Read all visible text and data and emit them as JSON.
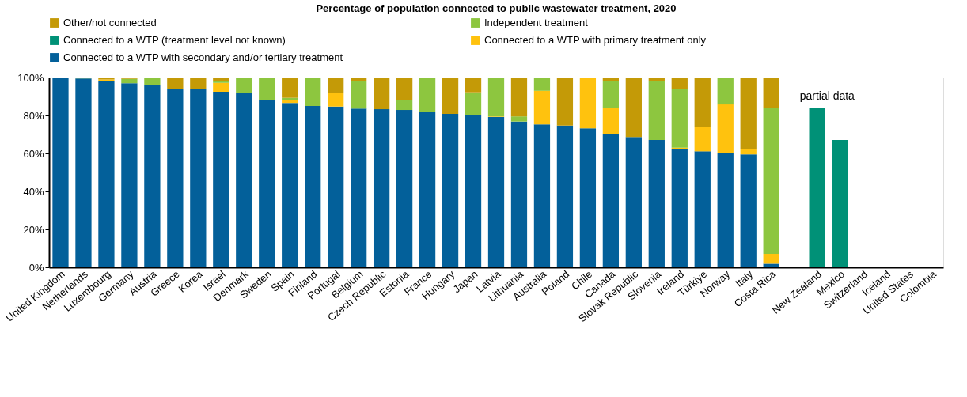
{
  "chart_data": {
    "type": "bar",
    "title": "Percentage of population connected to public wastewater treatment, 2020",
    "stacked": true,
    "legend": "top",
    "categories": [
      "United Kingdom",
      "Netherlands",
      "Luxembourg",
      "Germany",
      "Austria",
      "Greece",
      "Korea",
      "Israel",
      "Denmark",
      "Sweden",
      "Spain",
      "Finland",
      "Portugal",
      "Belgium",
      "Czech Republic",
      "Estonia",
      "France",
      "Hungary",
      "Japan",
      "Latvia",
      "Lithuania",
      "Australia",
      "Poland",
      "Chile",
      "Canada",
      "Slovak Republic",
      "Slovenia",
      "Ireland",
      "Türkiye",
      "Norway",
      "Italy",
      "Costa Rica",
      null,
      "New Zealand",
      "Mexico",
      "Switzerland",
      "Iceland",
      "United States",
      "Colombia"
    ],
    "series": [
      {
        "name": "Connected to a WTP with secondary and/or tertiary treatment",
        "color": "#03609a",
        "values": [
          100,
          99.5,
          98,
          97,
          96,
          94,
          93.7,
          92.5,
          92,
          88,
          86.6,
          85,
          84.7,
          83.6,
          83.3,
          82.9,
          81.9,
          80.8,
          80,
          79.2,
          76.8,
          75.3,
          74.7,
          73.2,
          70.3,
          68.6,
          67.1,
          62.5,
          61.1,
          60,
          59.5,
          1.9,
          null,
          null,
          null,
          null,
          null,
          null,
          null
        ]
      },
      {
        "name": "Connected to a WTP with primary treatment only",
        "color": "#ffc20e",
        "values": [
          null,
          null,
          1,
          null,
          null,
          null,
          null,
          4.7,
          null,
          null,
          1.6,
          null,
          7.1,
          null,
          null,
          null,
          null,
          null,
          null,
          0.3,
          null,
          17.7,
          null,
          26.8,
          13.8,
          null,
          null,
          0.5,
          12.9,
          25.8,
          3,
          5.2,
          null,
          null,
          null,
          null,
          null,
          null,
          null
        ]
      },
      {
        "name": "Connected to a WTP (treatment level not known)",
        "color": "#009177",
        "values": [
          null,
          null,
          null,
          null,
          null,
          null,
          null,
          null,
          null,
          null,
          null,
          null,
          null,
          null,
          null,
          null,
          null,
          null,
          null,
          null,
          null,
          null,
          null,
          null,
          null,
          null,
          null,
          null,
          null,
          null,
          null,
          null,
          null,
          84.1,
          67.1,
          null,
          null,
          null,
          null
        ]
      },
      {
        "name": "Independent treatment",
        "color": "#8dc63f",
        "values": [
          null,
          0.5,
          null,
          2.3,
          4,
          null,
          null,
          0.7,
          8,
          12,
          1.1,
          15,
          null,
          14.4,
          null,
          5.2,
          18.1,
          null,
          12.2,
          20.5,
          2.7,
          7,
          null,
          null,
          14.2,
          null,
          31.2,
          31.1,
          null,
          14.2,
          null,
          76.7,
          null,
          null,
          null,
          null,
          null,
          null,
          null
        ]
      },
      {
        "name": "Other/not connected",
        "color": "#c49a07",
        "values": [
          null,
          null,
          1,
          0.7,
          null,
          6,
          6.3,
          2.1,
          null,
          null,
          10.7,
          null,
          8.2,
          2,
          16.7,
          11.9,
          null,
          19.2,
          7.8,
          null,
          20.5,
          null,
          25.3,
          null,
          1.7,
          31.4,
          1.7,
          5.9,
          26,
          null,
          37.5,
          16.2,
          null,
          null,
          null,
          null,
          null,
          null,
          null
        ]
      }
    ],
    "ylim": [
      0,
      100
    ],
    "yticks": [
      {
        "value": 0,
        "label": "0%"
      },
      {
        "value": 20,
        "label": "20%"
      },
      {
        "value": 40,
        "label": "40%"
      },
      {
        "value": 60,
        "label": "60%"
      },
      {
        "value": 80,
        "label": "80%"
      },
      {
        "value": 100,
        "label": "100%"
      }
    ],
    "grid": false,
    "annotations": [
      "partial data"
    ]
  }
}
